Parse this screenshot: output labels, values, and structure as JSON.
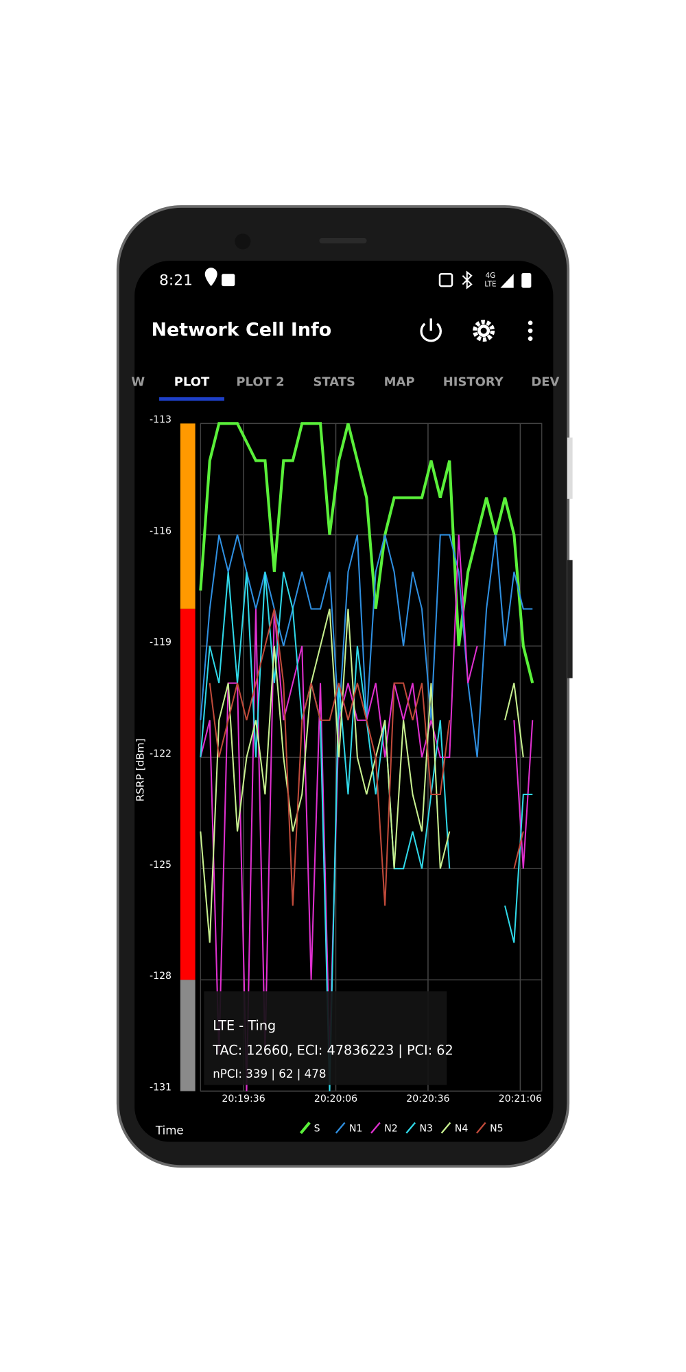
{
  "status_bar": {
    "time": "8:21",
    "network_top": "4G",
    "network_bottom": "LTE"
  },
  "app_bar": {
    "title": "Network Cell Info"
  },
  "tabs": [
    "W",
    "PLOT",
    "PLOT 2",
    "STATS",
    "MAP",
    "HISTORY",
    "DEV"
  ],
  "chart_data": {
    "type": "line",
    "y_label": "RSRP [dBm]",
    "x_label": "Time",
    "x": [
      "20:19:22",
      "20:19:25",
      "20:19:28",
      "20:19:31",
      "20:19:34",
      "20:19:37",
      "20:19:40",
      "20:19:43",
      "20:19:46",
      "20:19:49",
      "20:19:52",
      "20:19:55",
      "20:19:58",
      "20:20:01",
      "20:20:04",
      "20:20:07",
      "20:20:10",
      "20:20:13",
      "20:20:16",
      "20:20:19",
      "20:20:22",
      "20:20:25",
      "20:20:28",
      "20:20:31",
      "20:20:34",
      "20:20:37",
      "20:20:40",
      "20:20:43",
      "20:20:46",
      "20:20:49",
      "20:20:52",
      "20:20:55",
      "20:20:58",
      "20:21:01",
      "20:21:04",
      "20:21:07",
      "20:21:10"
    ],
    "xlim": [
      "20:19:22",
      "20:21:13"
    ],
    "xticks": [
      "20:19:36",
      "20:20:06",
      "20:20:36",
      "20:21:06"
    ],
    "ylim": [
      -131,
      -113
    ],
    "yticks": [
      -113,
      -116,
      -119,
      -122,
      -125,
      -128,
      -131
    ],
    "grid": true,
    "signal_bands": [
      {
        "from": -113,
        "to": -118,
        "color": "#ff9900"
      },
      {
        "from": -118,
        "to": -128,
        "color": "#ff0000"
      },
      {
        "from": -128,
        "to": -131,
        "color": "#8a8a8a"
      }
    ],
    "series": [
      {
        "name": "S",
        "color": "#5af03a",
        "values": [
          -117.5,
          -114,
          -113,
          -113,
          -113,
          -113.5,
          -114,
          -114,
          -117,
          -114,
          -114,
          -113,
          -113,
          -113,
          -116,
          -114,
          -113,
          -114,
          -115,
          -118,
          -116,
          -115,
          -115,
          -115,
          -115,
          -114,
          -115,
          -114,
          -119,
          -117,
          -116,
          -115,
          -116,
          -115,
          -116,
          -119,
          -120
        ]
      },
      {
        "name": "N1",
        "color": "#2f8fe0",
        "values": [
          -121,
          -118,
          -116,
          -117,
          -116,
          -117,
          -118,
          -117,
          -118,
          -119,
          -118,
          -117,
          -118,
          -118,
          -117,
          -121,
          -117,
          -116,
          -121,
          -117,
          -116,
          -117,
          -119,
          -117,
          -118,
          -121,
          -116,
          -116,
          -117,
          -120,
          -122,
          -118,
          -116,
          -119,
          -117,
          -118,
          -118
        ]
      },
      {
        "name": "N2",
        "color": "#e030d0",
        "values": [
          -122,
          -121,
          -130,
          -120,
          -120,
          -131,
          -118,
          -130,
          -118,
          -121,
          -120,
          -119,
          -128,
          -120,
          -130,
          -121,
          -120,
          -121,
          -121,
          -120,
          -122,
          -120,
          -121,
          -120,
          -122,
          -121,
          -122,
          -122,
          -116,
          -120,
          -119,
          null,
          null,
          null,
          -121,
          -125,
          -121
        ]
      },
      {
        "name": "N3",
        "color": "#30d8e8",
        "values": [
          -122,
          -119,
          -120,
          -117,
          -120,
          -117,
          -122,
          -117,
          -120,
          -117,
          -118,
          -121,
          -120,
          -121,
          -131,
          -120,
          -123,
          -119,
          -121,
          -123,
          -121,
          -125,
          -125,
          -124,
          -125,
          -123,
          -121,
          -125,
          null,
          null,
          null,
          null,
          null,
          -126,
          -127,
          -123,
          -123
        ]
      },
      {
        "name": "N4",
        "color": "#c8f090",
        "values": [
          -124,
          -127,
          -121,
          -120,
          -124,
          -122,
          -121,
          -123,
          -119,
          -122,
          -124,
          -123,
          -120,
          -119,
          -118,
          -122,
          -118,
          -122,
          -123,
          -122,
          -121,
          -125,
          -121,
          -123,
          -124,
          -120,
          -125,
          -124,
          null,
          null,
          null,
          null,
          null,
          -121,
          -120,
          -122,
          null
        ]
      },
      {
        "name": "N5",
        "color": "#c04a3a",
        "values": [
          null,
          -120,
          -122,
          -121,
          -120,
          -121,
          -120,
          -119,
          -118,
          -120,
          -126,
          -121,
          -120,
          -121,
          -121,
          -120,
          -121,
          -120,
          -121,
          -122,
          -126,
          -120,
          -120,
          -121,
          -120,
          -123,
          -123,
          -121,
          null,
          null,
          null,
          null,
          null,
          null,
          -125,
          -124,
          null
        ]
      }
    ]
  },
  "info_box": {
    "operator": "LTE - Ting",
    "cell": "TAC: 12660, ECI: 47836223 | PCI: 62",
    "neighbors": "nPCI: 339 | 62 | 478"
  }
}
